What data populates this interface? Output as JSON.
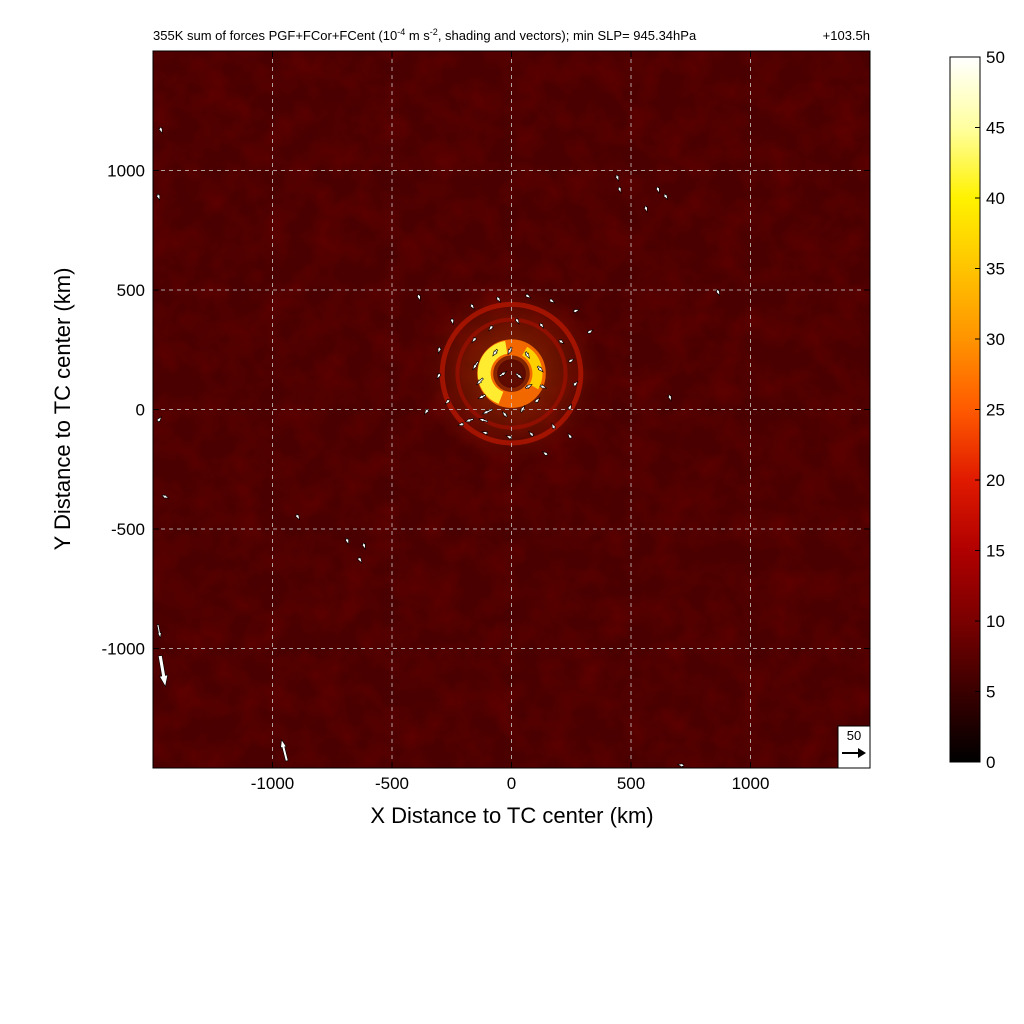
{
  "chart_data": {
    "type": "heatmap",
    "title": "355K sum of forces PGF+FCor+FCent (10",
    "title_exp1": "-4",
    "title_mid": " m s",
    "title_exp2": "-2",
    "title_rest": ", shading and vectors); min SLP= 945.34hPa",
    "time_label": "+103.5h",
    "xlabel": "X Distance to TC center (km)",
    "ylabel": "Y Distance to TC center (km)",
    "xlim": [
      -1500,
      1500
    ],
    "ylim": [
      -1500,
      1500
    ],
    "x_ticks": [
      -1000,
      -500,
      0,
      500,
      1000
    ],
    "y_ticks": [
      -1000,
      -500,
      0,
      500,
      1000
    ],
    "x_tick_labels": [
      "-1000",
      "-500",
      "0",
      "500",
      "1000"
    ],
    "y_tick_labels": [
      "-1000",
      "-500",
      "0",
      "500",
      "1000"
    ],
    "grid": true,
    "colorbar": {
      "min": 0,
      "max": 50,
      "ticks": [
        0,
        5,
        10,
        15,
        20,
        25,
        30,
        35,
        40,
        45,
        50
      ],
      "tick_labels": [
        "0",
        "5",
        "10",
        "15",
        "20",
        "25",
        "30",
        "35",
        "40",
        "45",
        "50"
      ],
      "colormap": [
        "#000000",
        "#3a0000",
        "#7a0000",
        "#b00000",
        "#e01a00",
        "#ff5a00",
        "#ff9400",
        "#ffc400",
        "#fff200",
        "#ffffa0",
        "#ffffff"
      ]
    },
    "reference_vector": {
      "label": "50",
      "magnitude": 50
    },
    "features": {
      "background_magnitude": 6,
      "core_center": [
        0,
        150
      ],
      "core_ring_radius_km": 110,
      "core_peak_magnitude": 48,
      "outer_ring_radius_km": 290
    },
    "vectors": [
      {
        "x": -120,
        "y": 130,
        "u": -14,
        "v": -14
      },
      {
        "x": -110,
        "y": 60,
        "u": -16,
        "v": -8
      },
      {
        "x": -80,
        "y": 0,
        "u": -22,
        "v": -10
      },
      {
        "x": -140,
        "y": 200,
        "u": -12,
        "v": -18
      },
      {
        "x": -60,
        "y": 250,
        "u": -10,
        "v": -14
      },
      {
        "x": 0,
        "y": 260,
        "u": -8,
        "v": -16
      },
      {
        "x": 60,
        "y": 240,
        "u": 8,
        "v": -14
      },
      {
        "x": 110,
        "y": 180,
        "u": 12,
        "v": -12
      },
      {
        "x": 120,
        "y": 100,
        "u": 14,
        "v": -6
      },
      {
        "x": 100,
        "y": 30,
        "u": 10,
        "v": 10
      },
      {
        "x": 40,
        "y": -10,
        "u": 8,
        "v": 14
      },
      {
        "x": -20,
        "y": -30,
        "u": -10,
        "v": 12
      },
      {
        "x": -50,
        "y": 140,
        "u": 16,
        "v": 10
      },
      {
        "x": 20,
        "y": 150,
        "u": 14,
        "v": -12
      },
      {
        "x": 60,
        "y": 90,
        "u": 14,
        "v": 8
      },
      {
        "x": -160,
        "y": -40,
        "u": -18,
        "v": -6
      },
      {
        "x": -100,
        "y": -50,
        "u": -20,
        "v": 6
      },
      {
        "x": -150,
        "y": 300,
        "u": -8,
        "v": -10
      },
      {
        "x": -80,
        "y": 350,
        "u": -6,
        "v": -8
      },
      {
        "x": 20,
        "y": 380,
        "u": 4,
        "v": -8
      },
      {
        "x": 120,
        "y": 360,
        "u": 6,
        "v": -8
      },
      {
        "x": 200,
        "y": 290,
        "u": 8,
        "v": -6
      },
      {
        "x": 240,
        "y": 200,
        "u": 8,
        "v": 4
      },
      {
        "x": 260,
        "y": 100,
        "u": 6,
        "v": 6
      },
      {
        "x": 240,
        "y": 0,
        "u": 4,
        "v": 8
      },
      {
        "x": 180,
        "y": -80,
        "u": -4,
        "v": 8
      },
      {
        "x": 90,
        "y": -110,
        "u": -6,
        "v": 6
      },
      {
        "x": 0,
        "y": -120,
        "u": -8,
        "v": 4
      },
      {
        "x": -100,
        "y": -100,
        "u": -8,
        "v": 2
      },
      {
        "x": -200,
        "y": -60,
        "u": -8,
        "v": -2
      },
      {
        "x": -260,
        "y": 40,
        "u": -6,
        "v": -6
      },
      {
        "x": -300,
        "y": 150,
        "u": -4,
        "v": -8
      },
      {
        "x": -300,
        "y": 260,
        "u": -2,
        "v": -8
      },
      {
        "x": -250,
        "y": 380,
        "u": 2,
        "v": -8
      },
      {
        "x": -170,
        "y": 440,
        "u": 4,
        "v": -6
      },
      {
        "x": -60,
        "y": 470,
        "u": 4,
        "v": -6
      },
      {
        "x": 60,
        "y": 480,
        "u": 6,
        "v": -4
      },
      {
        "x": 160,
        "y": 460,
        "u": 6,
        "v": -4
      },
      {
        "x": 260,
        "y": 410,
        "u": 6,
        "v": 2
      },
      {
        "x": 320,
        "y": 320,
        "u": 6,
        "v": 4
      },
      {
        "x": 250,
        "y": -120,
        "u": -4,
        "v": 6
      },
      {
        "x": 150,
        "y": -190,
        "u": -6,
        "v": 4
      },
      {
        "x": -350,
        "y": 0,
        "u": -4,
        "v": -6
      },
      {
        "x": -390,
        "y": 480,
        "u": 2,
        "v": -6
      },
      {
        "x": 440,
        "y": 980,
        "u": 2,
        "v": -6
      },
      {
        "x": 450,
        "y": 930,
        "u": 2,
        "v": -6
      },
      {
        "x": 610,
        "y": 930,
        "u": 2,
        "v": -6
      },
      {
        "x": 640,
        "y": 900,
        "u": 4,
        "v": -6
      },
      {
        "x": 560,
        "y": 850,
        "u": 2,
        "v": -6
      },
      {
        "x": -620,
        "y": -560,
        "u": 2,
        "v": -6
      },
      {
        "x": -690,
        "y": -540,
        "u": 2,
        "v": -6
      },
      {
        "x": -640,
        "y": -620,
        "u": 4,
        "v": -6
      },
      {
        "x": -900,
        "y": -440,
        "u": 4,
        "v": -6
      },
      {
        "x": -1470,
        "y": -1030,
        "u": 12,
        "v": -70
      },
      {
        "x": -1480,
        "y": -900,
        "u": 6,
        "v": -30
      },
      {
        "x": -940,
        "y": -1470,
        "u": -12,
        "v": 48
      },
      {
        "x": -1460,
        "y": -360,
        "u": 14,
        "v": -6
      },
      {
        "x": -1480,
        "y": -50,
        "u": 6,
        "v": 8
      },
      {
        "x": -1470,
        "y": 1180,
        "u": 2,
        "v": -6
      },
      {
        "x": -1480,
        "y": 900,
        "u": 2,
        "v": -6
      },
      {
        "x": 660,
        "y": 60,
        "u": 2,
        "v": -6
      },
      {
        "x": 860,
        "y": 500,
        "u": 2,
        "v": -4
      },
      {
        "x": 720,
        "y": -1490,
        "u": -10,
        "v": 2
      }
    ]
  }
}
